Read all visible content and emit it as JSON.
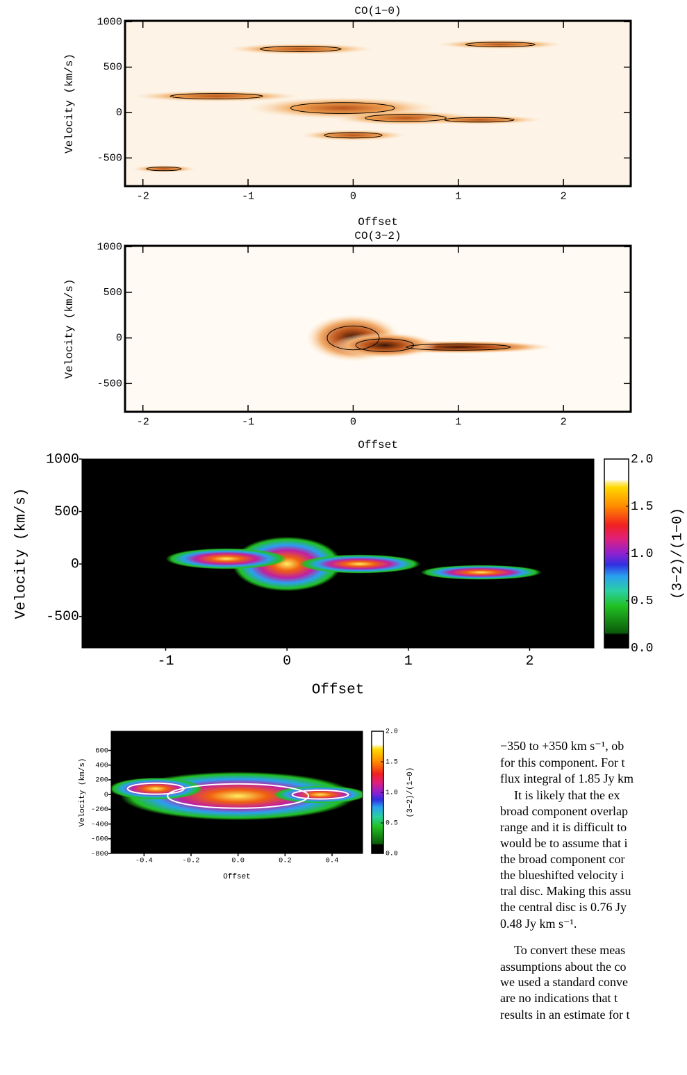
{
  "chart_data": [
    {
      "type": "heatmap",
      "title": "CO(1−0)",
      "xlabel": "Offset",
      "ylabel": "Velocity (km/s)",
      "xlim": [
        -2.17,
        2.64
      ],
      "ylim": [
        -810,
        1010
      ],
      "xticks": [
        -2,
        -1,
        0,
        1,
        2
      ],
      "yticks": [
        -500,
        0,
        500,
        1000
      ]
    },
    {
      "type": "heatmap",
      "title": "CO(3−2)",
      "xlabel": "Offset",
      "ylabel": "Velocity (km/s)",
      "xlim": [
        -2.17,
        2.64
      ],
      "ylim": [
        -810,
        1010
      ],
      "xticks": [
        -2,
        -1,
        0,
        1,
        2
      ],
      "yticks": [
        -500,
        0,
        500,
        1000
      ]
    },
    {
      "type": "heatmap",
      "xlabel": "Offset",
      "ylabel": "Velocity (km/s)",
      "xlim": [
        -1.69,
        2.53
      ],
      "ylim": [
        -800,
        1000
      ],
      "xticks": [
        -1,
        0,
        1,
        2
      ],
      "yticks": [
        -500,
        0,
        500,
        1000
      ],
      "colorbar_label": "(3−2)/(1−0)",
      "clim": [
        0,
        2
      ],
      "cticks": [
        {
          "value": 0,
          "label": "0.0"
        },
        0.5,
        {
          "value": 1,
          "label": "1.0"
        },
        1.5,
        {
          "value": 2,
          "label": "2.0"
        }
      ]
    },
    {
      "type": "heatmap",
      "xlabel": "Offset",
      "ylabel": "Velocity (km/s)",
      "xlim": [
        -0.54,
        0.53
      ],
      "ylim": [
        -800,
        860
      ],
      "xticks": [
        -0.4,
        -0.2,
        {
          "value": 0,
          "label": "0.0"
        },
        0.2,
        0.4
      ],
      "yticks": [
        -800,
        -600,
        -400,
        -200,
        0,
        200,
        400,
        600
      ],
      "colorbar_label": "(3−2)/(1−0)",
      "clim": [
        0,
        2
      ],
      "cticks": [
        {
          "value": 0,
          "label": "0.0"
        },
        0.5,
        {
          "value": 1,
          "label": "1.0"
        },
        1.5,
        {
          "value": 2,
          "label": "2.0"
        }
      ]
    }
  ],
  "text_lines": [
    "−350 to +350 km s⁻¹, ob",
    "for this component. For t",
    "flux integral of 1.85 Jy km",
    "It is likely that the ex",
    "broad component overlap",
    "range and it is difficult to",
    "would be to assume that i",
    "the broad component cor",
    "the blueshifted velocity i",
    "tral disc. Making this assu",
    "the central disc is 0.76 Jy",
    "0.48 Jy km s⁻¹.",
    "To convert these meas",
    "assumptions about the co",
    "we used a standard conve",
    "are no indications that t",
    "results in an estimate for t"
  ]
}
